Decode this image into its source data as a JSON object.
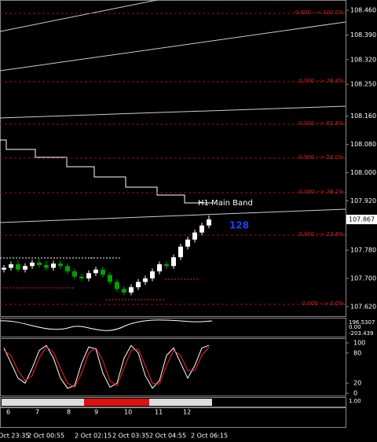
{
  "chart_data": {
    "type": "candlestick",
    "ylim": [
      107.593,
      108.489
    ],
    "yticks": [
      {
        "value": 108.46,
        "label": "108.460"
      },
      {
        "value": 108.39,
        "label": "108.390"
      },
      {
        "value": 108.32,
        "label": "108.320"
      },
      {
        "value": 108.25,
        "label": "108.250"
      },
      {
        "value": 108.16,
        "label": "108.160"
      },
      {
        "value": 108.08,
        "label": "108.080"
      },
      {
        "value": 108,
        "label": "108.000"
      },
      {
        "value": 107.92,
        "label": "107.920"
      },
      {
        "value": 107.78,
        "label": "107.780"
      },
      {
        "value": 107.7,
        "label": "107.700"
      },
      {
        "value": 107.62,
        "label": "107.620"
      }
    ],
    "last_price": {
      "value": 107.867,
      "label": "107.867"
    },
    "fib_labels": [
      "0.000 --> 100.0%",
      "0.000 --> 76.4%",
      "0.000 --> 61.8%",
      "0.000 --> 50.0%",
      "0.000 --> 38.2%",
      "0.000 --> 23.6%",
      "0.000 --> 0.0%"
    ],
    "band_label": "H1 Main Band",
    "counter": "128",
    "up_color": "#ffffff",
    "down_color": "#00a000",
    "open": [
      107.725,
      107.73,
      107.74,
      107.725,
      107.735,
      107.745,
      107.738,
      107.73,
      107.742,
      107.735,
      107.72,
      107.705,
      107.7,
      107.715,
      107.725,
      107.71,
      107.69,
      107.67,
      107.66,
      107.675,
      107.69,
      107.7,
      107.72,
      107.74,
      107.735,
      107.76,
      107.79,
      107.81,
      107.83,
      107.85
    ],
    "high": [
      107.738,
      107.748,
      107.752,
      107.743,
      107.753,
      107.755,
      107.75,
      107.75,
      107.75,
      107.743,
      107.728,
      107.713,
      107.723,
      107.733,
      107.733,
      107.718,
      107.698,
      107.678,
      107.683,
      107.698,
      107.708,
      107.728,
      107.748,
      107.748,
      107.768,
      107.798,
      107.818,
      107.838,
      107.858,
      107.878
    ],
    "low": [
      107.717,
      107.722,
      107.717,
      107.717,
      107.727,
      107.73,
      107.722,
      107.722,
      107.727,
      107.712,
      107.697,
      107.692,
      107.692,
      107.707,
      107.702,
      107.682,
      107.662,
      107.652,
      107.652,
      107.667,
      107.682,
      107.692,
      107.712,
      107.727,
      107.727,
      107.752,
      107.782,
      107.802,
      107.822,
      107.842
    ],
    "close": [
      107.73,
      107.74,
      107.725,
      107.735,
      107.745,
      107.738,
      107.73,
      107.742,
      107.735,
      107.72,
      107.705,
      107.7,
      107.715,
      107.725,
      107.71,
      107.69,
      107.67,
      107.66,
      107.675,
      107.69,
      107.7,
      107.72,
      107.74,
      107.735,
      107.76,
      107.79,
      107.81,
      107.83,
      107.85,
      107.867
    ],
    "osc_labels": [
      "196.5307",
      "0.00",
      "-203.439"
    ],
    "stoch": {
      "ylim": [
        0,
        100
      ],
      "yticks": [
        100,
        80,
        20,
        0
      ],
      "series": [
        {
          "color": "#ffffff",
          "values": [
            90,
            60,
            30,
            20,
            50,
            85,
            95,
            70,
            30,
            10,
            15,
            60,
            92,
            88,
            40,
            12,
            20,
            70,
            95,
            80,
            35,
            10,
            25,
            75,
            90,
            60,
            30,
            55,
            90,
            95
          ]
        },
        {
          "color": "#ff2020",
          "values": [
            85,
            75,
            45,
            25,
            35,
            70,
            92,
            82,
            50,
            20,
            12,
            40,
            80,
            90,
            65,
            25,
            15,
            50,
            85,
            88,
            55,
            20,
            18,
            55,
            85,
            75,
            45,
            45,
            75,
            92
          ]
        }
      ]
    },
    "strip_label": "1.00",
    "sessions": [
      "6",
      "7",
      "8",
      "9",
      "10",
      "11",
      "12"
    ],
    "time_labels": [
      "Oct 23:35",
      "2 Oct 00:55",
      "2 Oct 02:15",
      "2 Oct 03:35",
      "2 Oct 04:55",
      "2 Oct 06:15"
    ]
  }
}
